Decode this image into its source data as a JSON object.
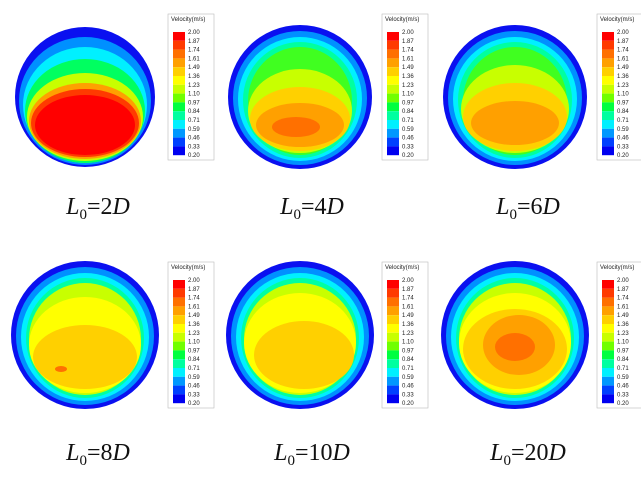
{
  "colorbar": {
    "title": "Velocity(m/s)",
    "ticks": [
      "2.00",
      "1.87",
      "1.74",
      "1.61",
      "1.49",
      "1.36",
      "1.23",
      "1.10",
      "0.97",
      "0.84",
      "0.71",
      "0.59",
      "0.46",
      "0.33",
      "0.20"
    ],
    "colors": [
      "#ff0000",
      "#ff3a00",
      "#ff7000",
      "#ffa000",
      "#ffd000",
      "#ffff00",
      "#c8ff00",
      "#70ff00",
      "#00ff40",
      "#00ffa0",
      "#00f0ff",
      "#0098ff",
      "#0040ff",
      "#0000f0"
    ]
  },
  "panels": [
    {
      "label": {
        "symbol": "L",
        "sub": "0",
        "eq": "=2",
        "unit": "D"
      }
    },
    {
      "label": {
        "symbol": "L",
        "sub": "0",
        "eq": "=4",
        "unit": "D"
      }
    },
    {
      "label": {
        "symbol": "L",
        "sub": "0",
        "eq": "=6",
        "unit": "D"
      }
    },
    {
      "label": {
        "symbol": "L",
        "sub": "0",
        "eq": "=8",
        "unit": "D"
      }
    },
    {
      "label": {
        "symbol": "L",
        "sub": "0",
        "eq": "=10",
        "unit": "D"
      }
    },
    {
      "label": {
        "symbol": "L",
        "sub": "0",
        "eq": "=20",
        "unit": "D"
      }
    }
  ]
}
